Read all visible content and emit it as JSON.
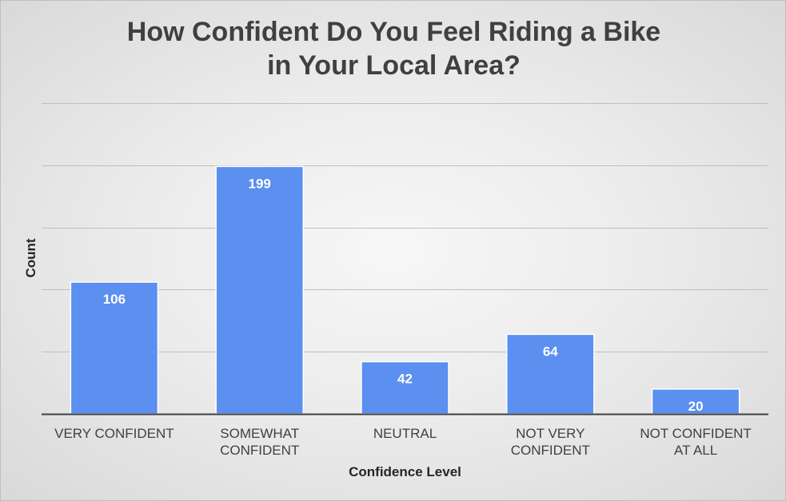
{
  "chart_data": {
    "type": "bar",
    "title_lines": [
      "How Confident Do You Feel Riding a Bike",
      "in Your Local Area?"
    ],
    "categories": [
      [
        "VERY CONFIDENT"
      ],
      [
        "SOMEWHAT",
        "CONFIDENT"
      ],
      [
        "NEUTRAL"
      ],
      [
        "NOT VERY",
        "CONFIDENT"
      ],
      [
        "NOT CONFIDENT",
        "AT ALL"
      ]
    ],
    "values": [
      106,
      199,
      42,
      64,
      20
    ],
    "xlabel": "Confidence Level",
    "ylabel": "Count",
    "ylim": [
      0,
      250
    ],
    "gridlines": [
      50,
      100,
      150,
      200,
      250
    ],
    "grid": true,
    "bar_color": "#5b8ff0",
    "bar_edge_color": "#ffffff",
    "gridline_color": "#bfbfbf",
    "axis_color": "#404040"
  }
}
